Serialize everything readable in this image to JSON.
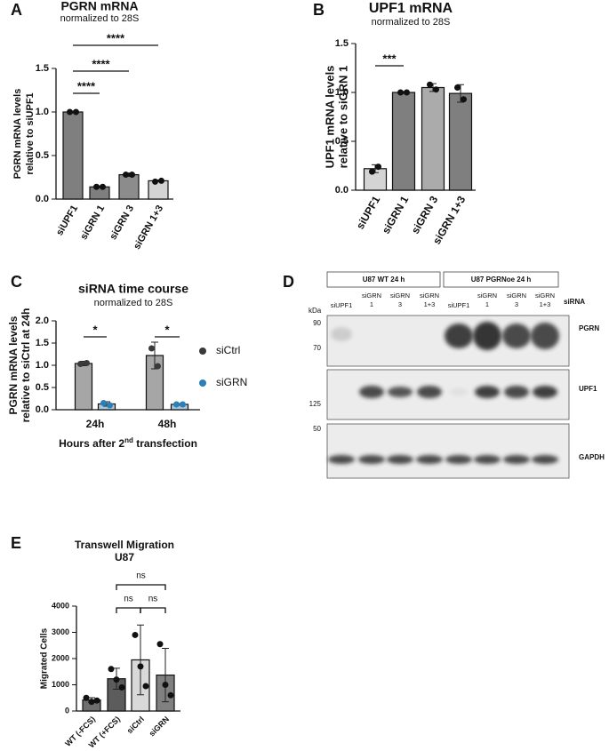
{
  "chart_data": [
    {
      "type": "bar",
      "panel": "A",
      "title": "PGRN mRNA",
      "subtitle": "normalized to 28S",
      "ylabel": [
        "PGRN mRNA levels",
        "relative to siUPF1"
      ],
      "categories": [
        "siUPF1",
        "siGRN 1",
        "siGRN 3",
        "siGRN 1+3"
      ],
      "values": [
        1.0,
        0.14,
        0.28,
        0.21
      ],
      "errors": [
        0.01,
        0.01,
        0.02,
        0.01
      ],
      "points": [
        [
          1.0,
          1.0
        ],
        [
          0.14,
          0.14
        ],
        [
          0.28,
          0.28
        ],
        [
          0.2,
          0.21
        ]
      ],
      "colors": [
        "#7f7f7f",
        "#7f7f7f",
        "#8c8c8c",
        "#d4d4d4"
      ],
      "ylim": [
        0,
        1.5
      ],
      "yticks": [
        {
          "value": 0,
          "label": "0.0"
        },
        0.5,
        {
          "value": 1,
          "label": "1.0"
        },
        1.5
      ],
      "significance": [
        "****",
        "****",
        "****"
      ]
    },
    {
      "type": "bar",
      "panel": "B",
      "title": "UPF1 mRNA",
      "subtitle": "normalized to 28S",
      "ylabel": [
        "UPF1 mRNA levels",
        "relative to siGRN 1"
      ],
      "categories": [
        "siUPF1",
        "siGRN 1",
        "siGRN 3",
        "siGRN 1+3"
      ],
      "values": [
        0.22,
        1.0,
        1.05,
        0.99
      ],
      "errors": [
        0.04,
        0.01,
        0.04,
        0.09
      ],
      "points": [
        [
          0.19,
          0.24
        ],
        [
          1.0,
          1.0
        ],
        [
          1.08,
          1.03
        ],
        [
          1.05,
          0.93
        ]
      ],
      "colors": [
        "#d4d4d4",
        "#7f7f7f",
        "#ababab",
        "#7f7f7f"
      ],
      "ylim": [
        0,
        1.5
      ],
      "yticks": [
        {
          "value": 0,
          "label": "0.0"
        },
        0.5,
        {
          "value": 1,
          "label": "1.0"
        },
        1.5
      ],
      "significance": [
        "***"
      ]
    },
    {
      "type": "grouped_bar",
      "panel": "C",
      "title": "siRNA time course",
      "subtitle": "normalized to 28S",
      "ylabel": [
        "PGRN mRNA levels",
        "relative to siCtrl at 24h"
      ],
      "xlabel": [
        "Hours after 2",
        "nd",
        " transfection"
      ],
      "categories": [
        "24h",
        "48h"
      ],
      "series": [
        {
          "name": "siCtrl",
          "color": "#3a3a3a",
          "bar_color": "#a6a6a6",
          "values": [
            1.04,
            1.22
          ],
          "errors": [
            0.05,
            0.3
          ],
          "points": [
            [
              1.03,
              1.05
            ],
            [
              1.38,
              0.98
            ]
          ]
        },
        {
          "name": "siGRN",
          "color": "#2d7fb8",
          "bar_color": "#a9c7db",
          "values": [
            0.13,
            0.12
          ],
          "errors": [
            0.05,
            0.02
          ],
          "points": [
            [
              0.15,
              0.1
            ],
            [
              0.12,
              0.12
            ]
          ]
        }
      ],
      "ylim": [
        0,
        2
      ],
      "yticks": [
        {
          "value": 0,
          "label": "0.0"
        },
        0.5,
        {
          "value": 1,
          "label": "1.0"
        },
        1.5,
        {
          "value": 2,
          "label": "2.0"
        }
      ],
      "significance": [
        "*",
        "*"
      ]
    },
    {
      "type": "bar",
      "panel": "E",
      "title": "Transwell Migration",
      "subtitle": "U87",
      "ylabel": [
        "Migrated Cells"
      ],
      "categories": [
        "WT (-FCS)",
        "WT (+FCS)",
        "siCtrl",
        "siGRN"
      ],
      "values": [
        420,
        1230,
        1950,
        1370
      ],
      "errors": [
        90,
        400,
        1330,
        1020
      ],
      "points": [
        [
          500,
          350,
          400
        ],
        [
          1600,
          1200,
          900
        ],
        [
          2900,
          1700,
          950
        ],
        [
          2550,
          1000,
          600
        ]
      ],
      "colors": [
        "#6e6e6e",
        "#5c5c5c",
        "#d9d9d9",
        "#808080"
      ],
      "ylim": [
        0,
        4000
      ],
      "yticks": [
        0,
        1000,
        2000,
        3000,
        4000
      ],
      "significance": [
        "ns",
        "ns",
        "ns"
      ]
    }
  ],
  "blot": {
    "panel": "D",
    "groups": [
      "U87 WT 24 h",
      "U87 PGRNoe 24 h"
    ],
    "row_label": "siRNA",
    "lanes": [
      [
        "siUPF1"
      ],
      [
        "siGRN",
        "1"
      ],
      [
        "siGRN",
        "3"
      ],
      [
        "siGRN",
        "1+3"
      ],
      [
        "siUPF1"
      ],
      [
        "siGRN",
        "1"
      ],
      [
        "siGRN",
        "3"
      ],
      [
        "siGRN",
        "1+3"
      ]
    ],
    "kda_label": "kDa",
    "markers": [
      90,
      70,
      125,
      50
    ],
    "proteins": [
      "PGRN",
      "UPF1",
      "GAPDH"
    ]
  }
}
